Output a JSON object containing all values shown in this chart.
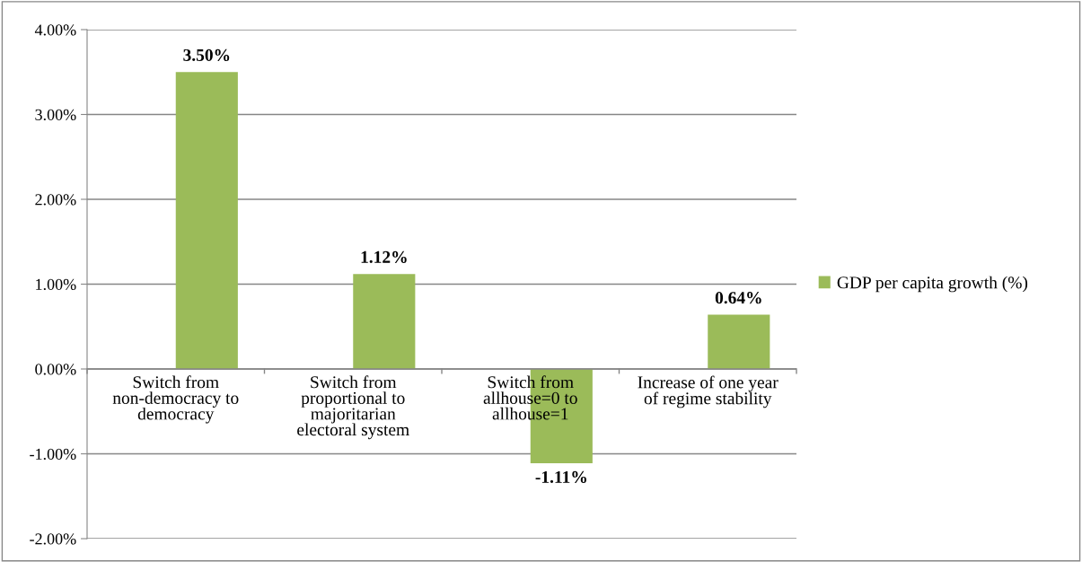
{
  "chart_data": {
    "type": "bar",
    "categories": [
      "Switch from non-democracy to democracy",
      "Switch from proportional to majoritarian electoral system",
      "Switch from allhouse=0 to allhouse=1",
      "Increase of one year of regime stability"
    ],
    "series": [
      {
        "name": "GDP per capita growth (%)",
        "color": "#9bbb59",
        "values": [
          3.5,
          1.12,
          -1.11,
          0.64
        ],
        "value_labels": [
          "3.50%",
          "1.12%",
          "-1.11%",
          "0.64%"
        ]
      }
    ],
    "ylim": [
      -2,
      4
    ],
    "yticks": [
      {
        "value": -2,
        "label": "-2.00%"
      },
      {
        "value": -1,
        "label": "-1.00%"
      },
      {
        "value": 0,
        "label": "0.00%"
      },
      {
        "value": 1,
        "label": "1.00%"
      },
      {
        "value": 2,
        "label": "2.00%"
      },
      {
        "value": 3,
        "label": "3.00%"
      },
      {
        "value": 4,
        "label": "4.00%"
      }
    ],
    "grid": "y",
    "legend": "right"
  }
}
